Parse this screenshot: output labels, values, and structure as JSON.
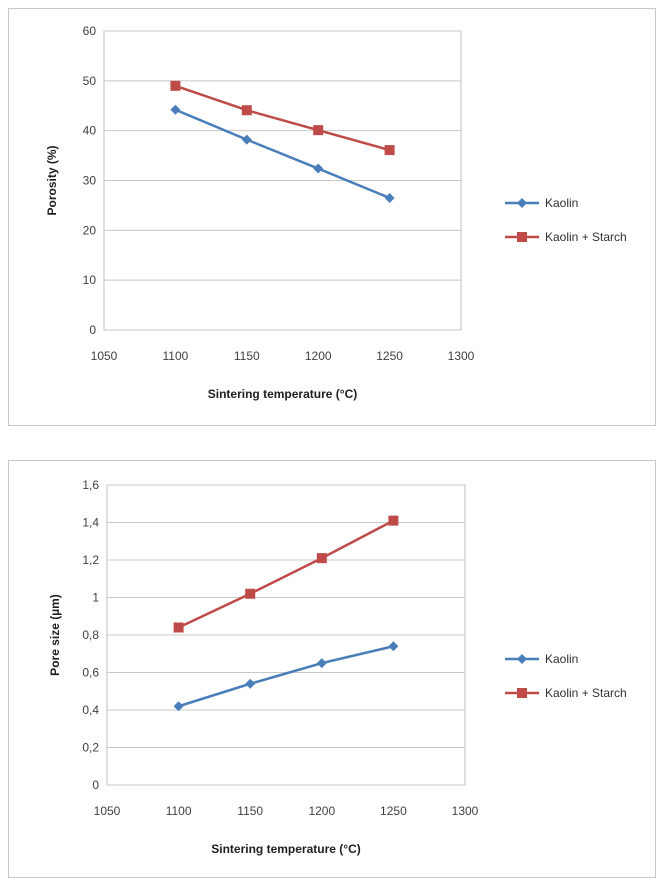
{
  "chart_data": [
    {
      "type": "line",
      "title": "",
      "xlabel": "Sintering temperature (°C)",
      "ylabel": "Porosity (%)",
      "xlim": [
        1050,
        1300
      ],
      "ylim": [
        0,
        60
      ],
      "x_ticks": [
        "1050",
        "1100",
        "1150",
        "1200",
        "1250",
        "1300"
      ],
      "y_ticks": [
        "0",
        "10",
        "20",
        "30",
        "40",
        "50",
        "60"
      ],
      "x": [
        1100,
        1150,
        1200,
        1250
      ],
      "grid": true,
      "legend_position": "right",
      "series": [
        {
          "name": "Kaolin",
          "values": [
            44.2,
            38.2,
            32.4,
            26.5
          ],
          "color": "#4a7ebb",
          "marker": "diamond"
        },
        {
          "name": "Kaolin + Starch",
          "values": [
            49.0,
            44.1,
            40.1,
            36.1
          ],
          "color": "#be4b48",
          "marker": "square"
        }
      ]
    },
    {
      "type": "line",
      "title": "",
      "xlabel": "Sintering temperature (°C)",
      "ylabel": "Pore size  (µm)",
      "xlim": [
        1050,
        1300
      ],
      "ylim": [
        0,
        1.6
      ],
      "x_ticks": [
        "1050",
        "1100",
        "1150",
        "1200",
        "1250",
        "1300"
      ],
      "y_ticks": [
        "0",
        "0,2",
        "0,4",
        "0,6",
        "0,8",
        "1",
        "1,2",
        "1,4",
        "1,6"
      ],
      "x": [
        1100,
        1150,
        1200,
        1250
      ],
      "grid": true,
      "legend_position": "right",
      "series": [
        {
          "name": "Kaolin",
          "values": [
            0.42,
            0.54,
            0.65,
            0.74
          ],
          "color": "#4a7ebb",
          "marker": "diamond"
        },
        {
          "name": "Kaolin + Starch",
          "values": [
            0.84,
            1.02,
            1.21,
            1.41
          ],
          "color": "#be4b48",
          "marker": "square"
        }
      ]
    }
  ]
}
